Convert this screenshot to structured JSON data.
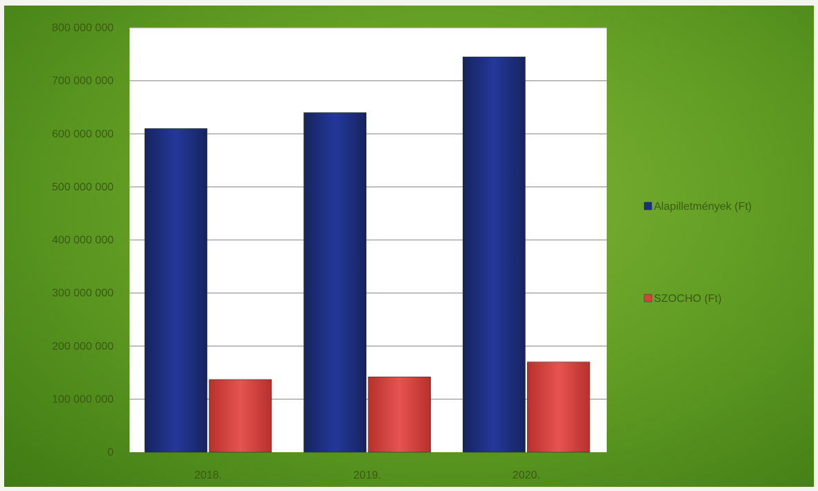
{
  "chart_data": {
    "type": "bar",
    "categories": [
      "2018.",
      "2019.",
      "2020."
    ],
    "series": [
      {
        "name": "Alapilletmények (Ft)",
        "values": [
          610000000,
          640000000,
          745000000
        ],
        "color": "#1c2f7a"
      },
      {
        "name": "SZOCHO (Ft)",
        "values": [
          137000000,
          142000000,
          170000000
        ],
        "color": "#d8403c"
      }
    ],
    "ylim": [
      0,
      800000000
    ],
    "yticks": [
      0,
      100000000,
      200000000,
      300000000,
      400000000,
      500000000,
      600000000,
      700000000,
      800000000
    ],
    "ytick_labels": [
      "0",
      "100 000 000",
      "200 000 000",
      "300 000 000",
      "400 000 000",
      "500 000 000",
      "600 000 000",
      "700 000 000",
      "800 000 000"
    ],
    "grid": true,
    "legend_position": "right",
    "plot_background": "#ffffff",
    "chart_background": "#5e9a22"
  }
}
